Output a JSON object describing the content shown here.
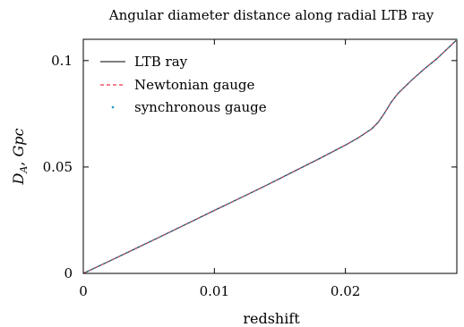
{
  "chart_data": {
    "type": "line",
    "title": "Angular diameter distance along radial LTB ray",
    "xlabel": "redshift",
    "ylabel": "D_A, Gpc",
    "xlim": [
      0,
      0.0285
    ],
    "ylim": [
      0,
      0.11
    ],
    "x_ticks": [
      0,
      0.01,
      0.02
    ],
    "x_tick_labels": [
      "0",
      "0.01",
      "0.02"
    ],
    "y_ticks": [
      0,
      0.05,
      0.1
    ],
    "y_tick_labels": [
      "0",
      "0.05",
      "0.1"
    ],
    "grid": false,
    "legend": {
      "position": "top-left",
      "entries": [
        "LTB ray",
        "Newtonian gauge",
        "synchronous gauge"
      ]
    },
    "series": [
      {
        "name": "LTB ray",
        "style": "solid",
        "color": "#333333",
        "x": [
          0,
          0.002,
          0.004,
          0.006,
          0.008,
          0.01,
          0.012,
          0.014,
          0.016,
          0.018,
          0.02,
          0.021,
          0.022,
          0.0225,
          0.023,
          0.0235,
          0.024,
          0.025,
          0.026,
          0.027,
          0.0285
        ],
        "y": [
          0,
          0.0058,
          0.0117,
          0.0176,
          0.0236,
          0.0296,
          0.0355,
          0.0415,
          0.0477,
          0.0539,
          0.0603,
          0.0638,
          0.0679,
          0.071,
          0.0755,
          0.0805,
          0.0845,
          0.0905,
          0.096,
          0.101,
          0.1098
        ]
      },
      {
        "name": "Newtonian gauge",
        "style": "dashed",
        "color": "#e8344a",
        "x": [
          0,
          0.002,
          0.004,
          0.006,
          0.008,
          0.01,
          0.012,
          0.014,
          0.016,
          0.018,
          0.02,
          0.021,
          0.022,
          0.0225,
          0.023,
          0.0235,
          0.024,
          0.025,
          0.026,
          0.027,
          0.0285
        ],
        "y": [
          0,
          0.0058,
          0.0117,
          0.0176,
          0.0236,
          0.0296,
          0.0355,
          0.0415,
          0.0477,
          0.0539,
          0.0603,
          0.0638,
          0.0679,
          0.071,
          0.0755,
          0.0805,
          0.0845,
          0.0905,
          0.096,
          0.101,
          0.1098
        ]
      },
      {
        "name": "synchronous gauge",
        "style": "dotted",
        "color": "#1a9cc4",
        "x": [
          0,
          0.002,
          0.004,
          0.006,
          0.008,
          0.01,
          0.012,
          0.014,
          0.016,
          0.018,
          0.02,
          0.021,
          0.022,
          0.0225,
          0.023,
          0.0235,
          0.024,
          0.025,
          0.026,
          0.027,
          0.0285
        ],
        "y": [
          0,
          0.0058,
          0.0117,
          0.0176,
          0.0236,
          0.0296,
          0.0355,
          0.0415,
          0.0477,
          0.0539,
          0.0603,
          0.0638,
          0.0679,
          0.071,
          0.0755,
          0.0805,
          0.0845,
          0.0905,
          0.096,
          0.101,
          0.1098
        ]
      }
    ]
  }
}
